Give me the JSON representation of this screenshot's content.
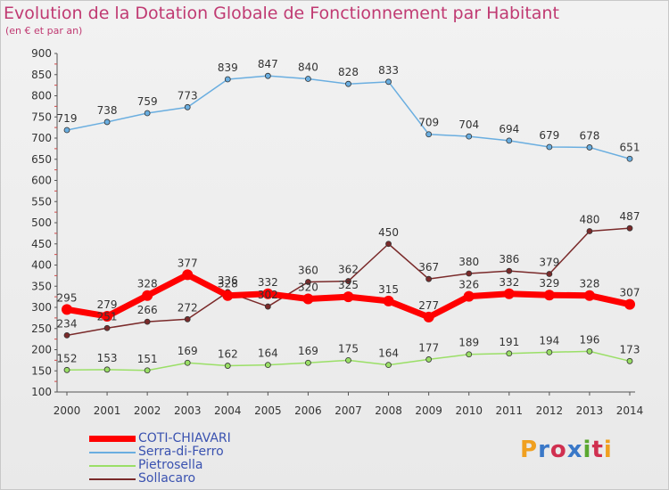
{
  "title": "Evolution de la Dotation Globale de Fonctionnement par Habitant",
  "subtitle": "(en € et par an)",
  "logo": {
    "letters": [
      "P",
      "r",
      "o",
      "x",
      "i",
      "t",
      "i"
    ],
    "colors": [
      "#f0a020",
      "#3a78c8",
      "#d03050",
      "#3a78c8",
      "#5aa830",
      "#d03050",
      "#f0a020"
    ]
  },
  "chart_data": {
    "type": "line",
    "x": [
      "2000",
      "2001",
      "2002",
      "2003",
      "2004",
      "2005",
      "2006",
      "2007",
      "2008",
      "2009",
      "2010",
      "2011",
      "2012",
      "2013",
      "2014"
    ],
    "ylim": [
      100,
      900
    ],
    "yticks": [
      100,
      150,
      200,
      250,
      300,
      350,
      400,
      450,
      500,
      550,
      600,
      650,
      700,
      750,
      800,
      850,
      900
    ],
    "grid": false,
    "legend_position": "bottom-left",
    "series": [
      {
        "name": "COTI-CHIAVARI",
        "color": "#ff0000",
        "width": 7,
        "values": [
          295,
          279,
          328,
          377,
          328,
          332,
          320,
          325,
          315,
          277,
          326,
          332,
          329,
          328,
          307
        ]
      },
      {
        "name": "Serra-di-Ferro",
        "color": "#6aaee0",
        "width": 1.5,
        "values": [
          719,
          738,
          759,
          773,
          839,
          847,
          840,
          828,
          833,
          709,
          704,
          694,
          679,
          678,
          651
        ]
      },
      {
        "name": "Pietrosella",
        "color": "#9adf66",
        "width": 1.5,
        "values": [
          152,
          153,
          151,
          169,
          162,
          164,
          169,
          175,
          164,
          177,
          189,
          191,
          194,
          196,
          173
        ]
      },
      {
        "name": "Sollacaro",
        "color": "#7a2a2a",
        "width": 1.5,
        "values": [
          234,
          251,
          266,
          272,
          336,
          302,
          360,
          362,
          450,
          367,
          380,
          386,
          379,
          480,
          487
        ]
      }
    ]
  }
}
